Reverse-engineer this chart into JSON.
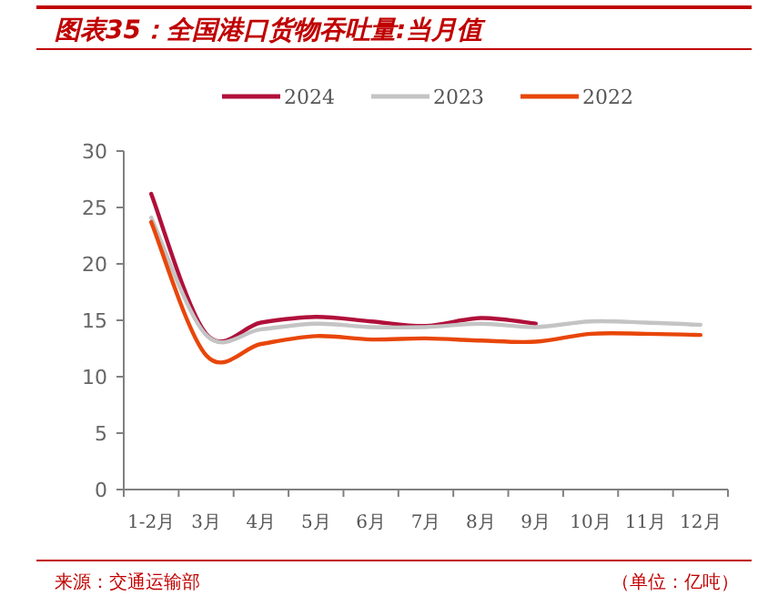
{
  "chart_data": {
    "type": "line",
    "title": "图表35：全国港口货物吞吐量:当月值",
    "categories": [
      "1-2月",
      "3月",
      "4月",
      "5月",
      "6月",
      "7月",
      "8月",
      "9月",
      "10月",
      "11月",
      "12月"
    ],
    "series": [
      {
        "name": "2024",
        "color": "#b0103a",
        "values": [
          26.2,
          13.8,
          14.8,
          15.3,
          14.9,
          14.5,
          15.2,
          14.7,
          null,
          null,
          null
        ]
      },
      {
        "name": "2023",
        "color": "#c4c4c4",
        "values": [
          24.1,
          13.7,
          14.2,
          14.7,
          14.4,
          14.4,
          14.7,
          14.4,
          14.9,
          14.8,
          14.6
        ]
      },
      {
        "name": "2022",
        "color": "#e8460a",
        "values": [
          23.7,
          11.9,
          12.9,
          13.6,
          13.3,
          13.4,
          13.2,
          13.1,
          13.8,
          13.8,
          13.7
        ]
      }
    ],
    "ylim": [
      0,
      30
    ],
    "yticks": [
      0,
      5,
      10,
      15,
      20,
      25,
      30
    ],
    "grid": false,
    "legend": "top",
    "marker": "none",
    "line_style": "solid",
    "annotations": [
      "来源：交通运输部",
      "（单位：亿吨）"
    ]
  }
}
